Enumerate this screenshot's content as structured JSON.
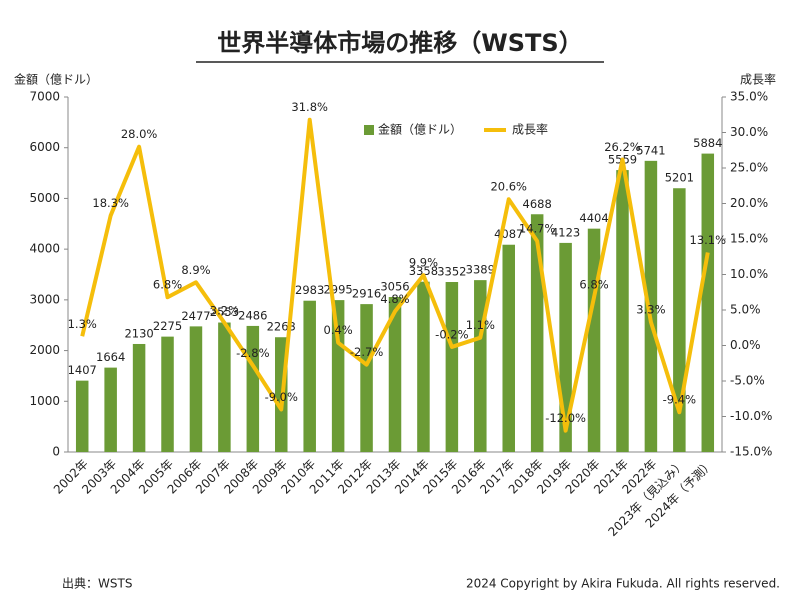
{
  "chart_data": {
    "type": "combo",
    "title": "世界半導体市場の推移（WSTS）",
    "y_label": "金額（億ドル）",
    "y2_label": "成長率",
    "source": "出典：WSTS",
    "copyright": "2024 Copyright by Akira Fukuda. All rights reserved.",
    "categories": [
      "2002年",
      "2003年",
      "2004年",
      "2005年",
      "2006年",
      "2007年",
      "2008年",
      "2009年",
      "2010年",
      "2011年",
      "2012年",
      "2013年",
      "2014年",
      "2015年",
      "2016年",
      "2017年",
      "2018年",
      "2019年",
      "2020年",
      "2021年",
      "2022年",
      "2023年（見込み）",
      "2024年（予測）"
    ],
    "series": [
      {
        "name": "金額（億ドル）",
        "type": "bar",
        "color": "#6b9b35",
        "values": [
          1407,
          1664,
          2130,
          2275,
          2477,
          2553,
          2486,
          2263,
          2983,
          2995,
          2916,
          3056,
          3358,
          3352,
          3389,
          4087,
          4688,
          4123,
          4404,
          5559,
          5741,
          5201,
          5884
        ]
      },
      {
        "name": "成長率",
        "type": "line",
        "axis": "y2",
        "color": "#f5be0b",
        "values": [
          1.3,
          18.3,
          28.0,
          6.8,
          8.9,
          3.2,
          -2.8,
          -9.0,
          31.8,
          0.4,
          -2.7,
          4.8,
          9.9,
          -0.2,
          1.1,
          20.6,
          14.7,
          -12.0,
          6.8,
          26.2,
          3.3,
          -9.4,
          13.1
        ],
        "value_labels": [
          "1.3%",
          "18.3%",
          "28.0%",
          "6.8%",
          "8.9%",
          "3.2%",
          "-2.8%",
          "-9.0%",
          "31.8%",
          "0.4%",
          "-2.7%",
          "4.8%",
          "9.9%",
          "-0.2%",
          "1.1%",
          "20.6%",
          "14.7%",
          "-12.0%",
          "6.8%",
          "26.2%",
          "3.3%",
          "-9.4%",
          "13.1%"
        ]
      }
    ],
    "ylim": [
      0,
      7000
    ],
    "yticks": [
      0,
      1000,
      2000,
      3000,
      4000,
      5000,
      6000,
      7000
    ],
    "y2lim": [
      -15,
      35
    ],
    "y2ticks": [
      {
        "value": -15,
        "label": "-15.0%"
      },
      {
        "value": -10,
        "label": "-10.0%"
      },
      {
        "value": -5,
        "label": "-5.0%"
      },
      {
        "value": 0,
        "label": "0.0%"
      },
      {
        "value": 5,
        "label": "5.0%"
      },
      {
        "value": 10,
        "label": "10.0%"
      },
      {
        "value": 15,
        "label": "15.0%"
      },
      {
        "value": 20,
        "label": "20.0%"
      },
      {
        "value": 25,
        "label": "25.0%"
      },
      {
        "value": 30,
        "label": "30.0%"
      },
      {
        "value": 35,
        "label": "35.0%"
      }
    ],
    "grid": false,
    "legend": "top"
  }
}
